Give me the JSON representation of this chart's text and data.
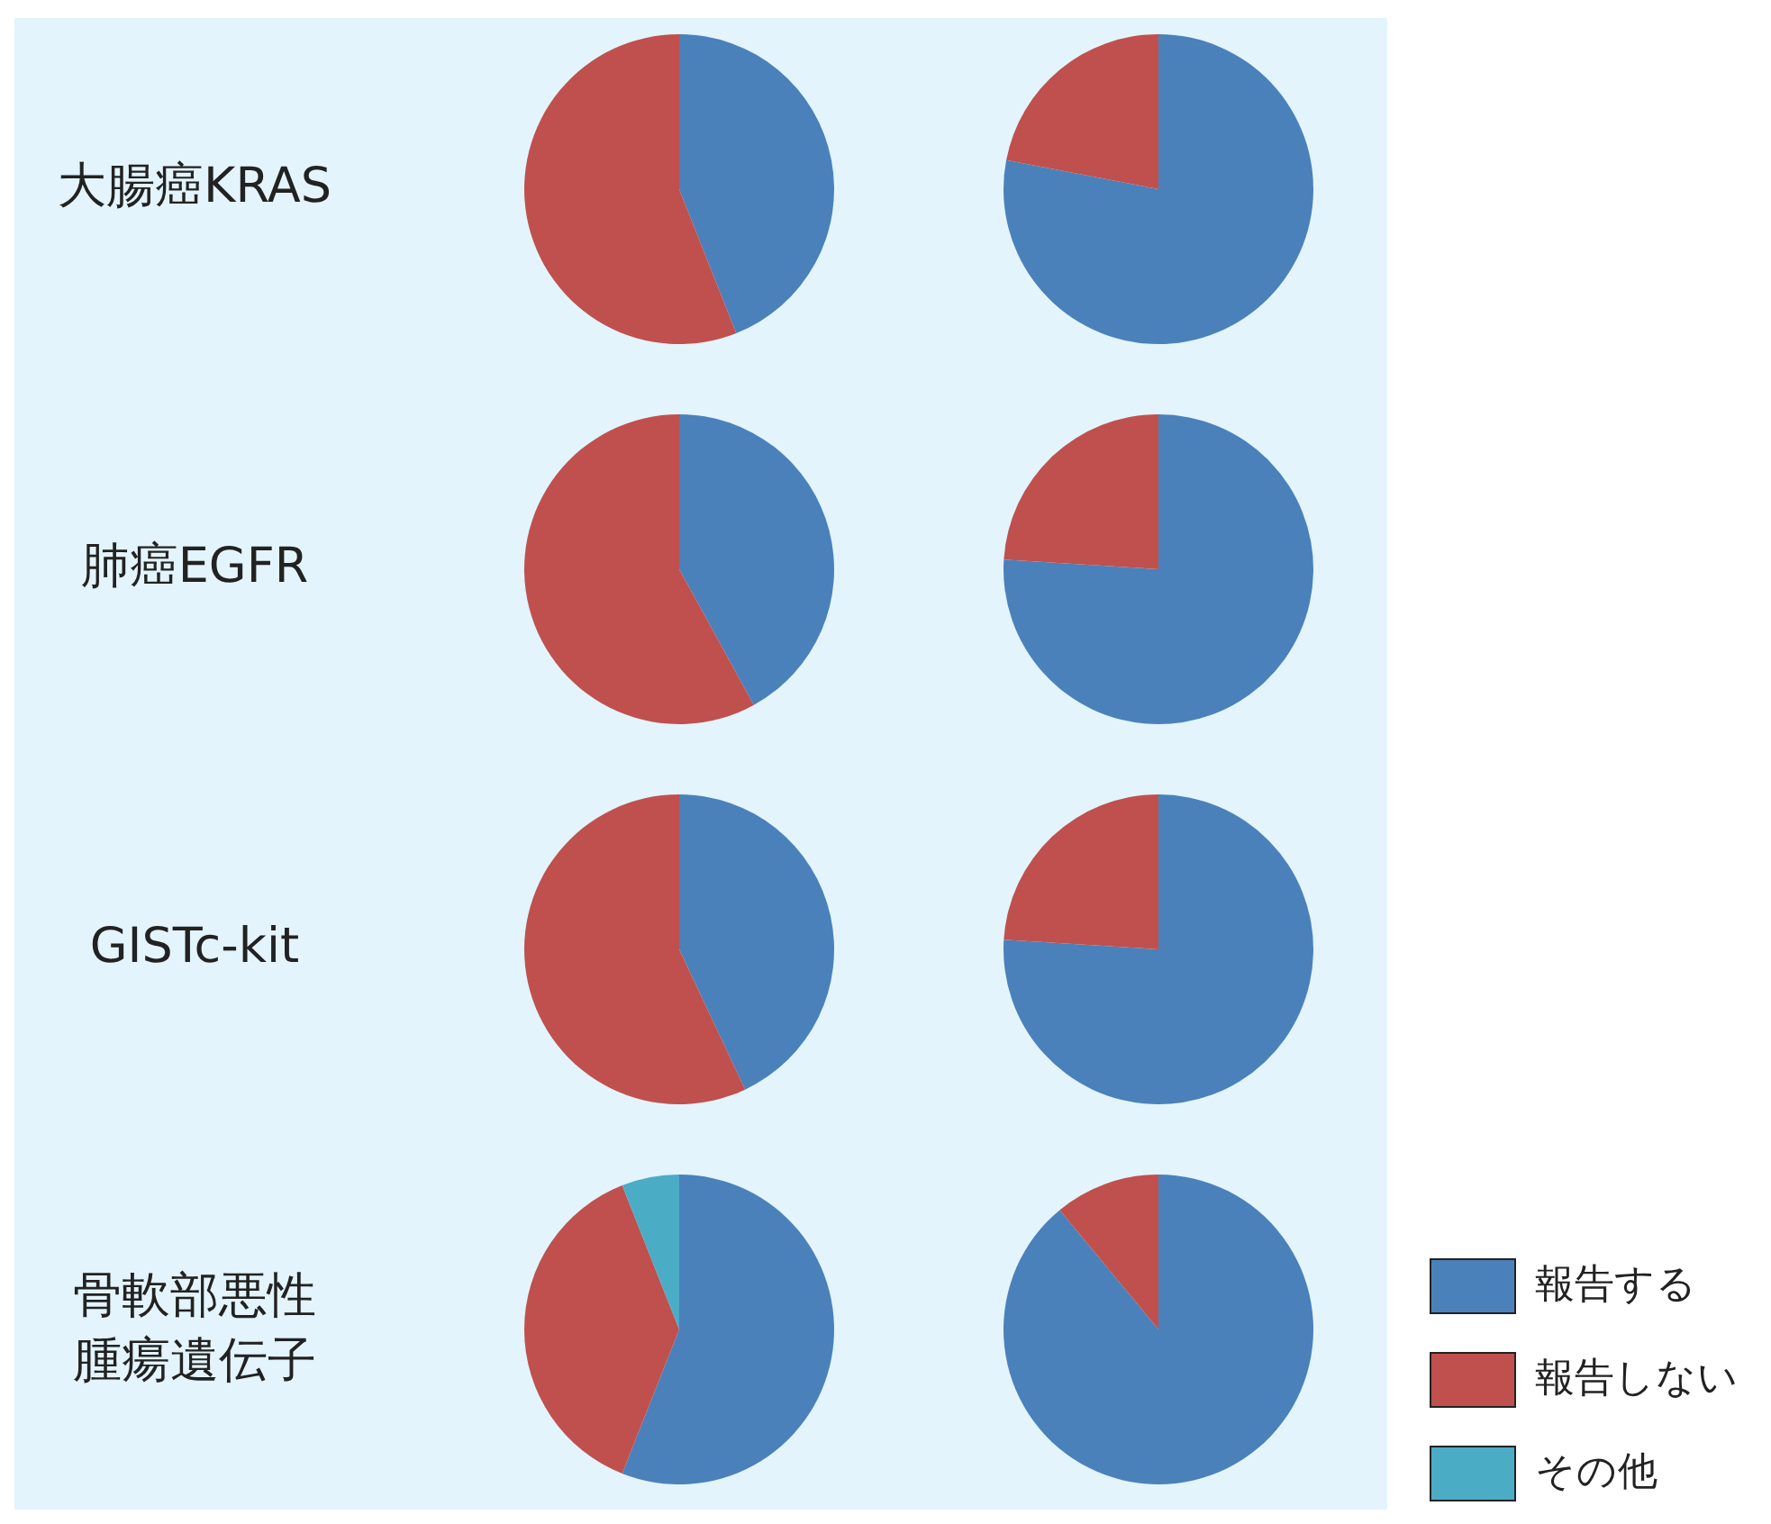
{
  "chart_data": [
    {
      "type": "pie",
      "title": "大腸癌KRAS",
      "categories": [
        null,
        null
      ],
      "values": [
        44,
        56
      ],
      "colors": [
        "#4a81bb",
        "#c0504d"
      ]
    },
    {
      "type": "pie",
      "categories": [
        null,
        null
      ],
      "values": [
        78,
        22
      ],
      "colors": [
        "#4a81bb",
        "#c0504d"
      ]
    },
    {
      "type": "pie",
      "title": "肺癌EGFR",
      "categories": [
        null,
        null
      ],
      "values": [
        42,
        58
      ],
      "colors": [
        "#4a81bb",
        "#c0504d"
      ]
    },
    {
      "type": "pie",
      "categories": [
        null,
        null
      ],
      "values": [
        76,
        24
      ],
      "colors": [
        "#4a81bb",
        "#c0504d"
      ]
    },
    {
      "type": "pie",
      "title": "GISTc-kit",
      "categories": [
        null,
        null
      ],
      "values": [
        43,
        57
      ],
      "colors": [
        "#4a81bb",
        "#c0504d"
      ]
    },
    {
      "type": "pie",
      "categories": [
        null,
        null
      ],
      "values": [
        76,
        24
      ],
      "colors": [
        "#4a81bb",
        "#c0504d"
      ]
    },
    {
      "type": "pie",
      "title": "骨軟部悪性腫瘍遺伝子",
      "categories": [
        "報告する",
        "報告しない",
        "その他"
      ],
      "values": [
        56,
        38,
        6
      ],
      "colors": [
        "#4a81bb",
        "#c0504d",
        "#4bacc6"
      ],
      "legend": "bottom right"
    },
    {
      "type": "pie",
      "categories": [
        null,
        null
      ],
      "values": [
        89,
        11
      ],
      "colors": [
        "#4a81bb",
        "#c0504d"
      ]
    }
  ]
}
